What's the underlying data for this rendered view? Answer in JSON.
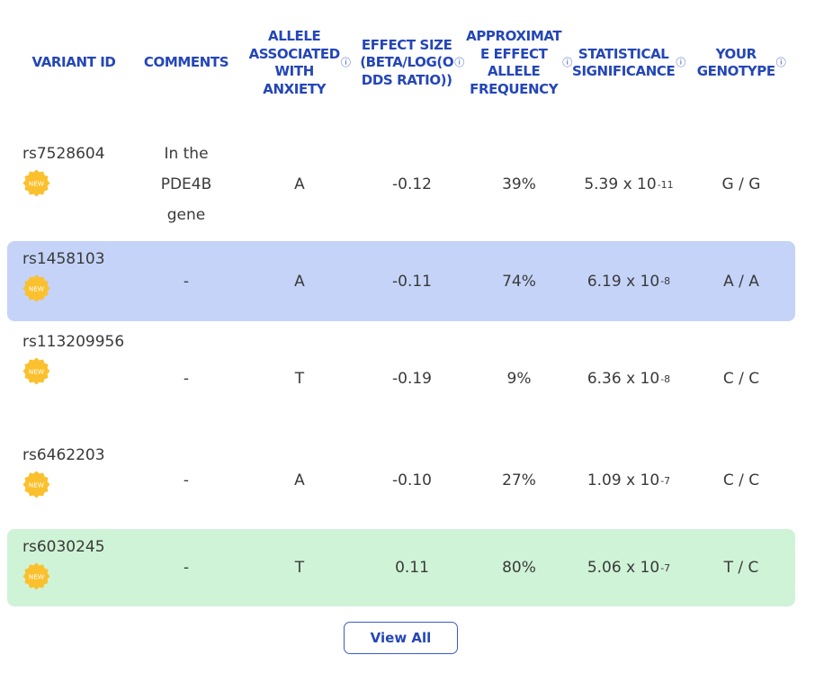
{
  "table": {
    "headers": [
      {
        "label": "VARIANT ID",
        "info": false
      },
      {
        "label": "COMMENTS",
        "info": false
      },
      {
        "label": "ALLELE\nASSOCIATED\nWITH\nANXIETY",
        "info": true
      },
      {
        "label": "EFFECT SIZE\n(BETA/LOG(O\nDDS RATIO))",
        "info": true
      },
      {
        "label": "APPROXIMAT\nE EFFECT\nALLELE\nFREQUENCY",
        "info": true
      },
      {
        "label": "STATISTICAL\nSIGNIFICANCE",
        "info": true
      },
      {
        "label": "YOUR\nGENOTYPE",
        "info": true
      }
    ],
    "info_symbol": "ⓘ",
    "badge_text": "NEW",
    "rows": [
      {
        "variant_id": "rs7528604",
        "comment": "In the\nPDE4B\ngene",
        "allele": "A",
        "effect": "-0.12",
        "frequency": "39%",
        "sig_base": "5.39 x 10",
        "sig_exp": "-11",
        "genotype": "G / G",
        "highlight": "none"
      },
      {
        "variant_id": "rs1458103",
        "comment": "-",
        "allele": "A",
        "effect": "-0.11",
        "frequency": "74%",
        "sig_base": "6.19 x 10",
        "sig_exp": "-8",
        "genotype": "A / A",
        "highlight": "blue"
      },
      {
        "variant_id": "rs113209956",
        "comment": "-",
        "allele": "T",
        "effect": "-0.19",
        "frequency": "9%",
        "sig_base": "6.36 x 10",
        "sig_exp": "-8",
        "genotype": "C / C",
        "highlight": "none"
      },
      {
        "variant_id": "rs6462203",
        "comment": "-",
        "allele": "A",
        "effect": "-0.10",
        "frequency": "27%",
        "sig_base": "1.09 x 10",
        "sig_exp": "-7",
        "genotype": "C / C",
        "highlight": "none"
      },
      {
        "variant_id": "rs6030245",
        "comment": "-",
        "allele": "T",
        "effect": "0.11",
        "frequency": "80%",
        "sig_base": "5.06 x 10",
        "sig_exp": "-7",
        "genotype": "T / C",
        "highlight": "green"
      }
    ]
  },
  "colors": {
    "header_text": "#2446b8",
    "row_blue": "#c4d3f7",
    "row_green": "#cff3d6",
    "badge": "#fbc02d"
  },
  "view_all_label": "View All"
}
